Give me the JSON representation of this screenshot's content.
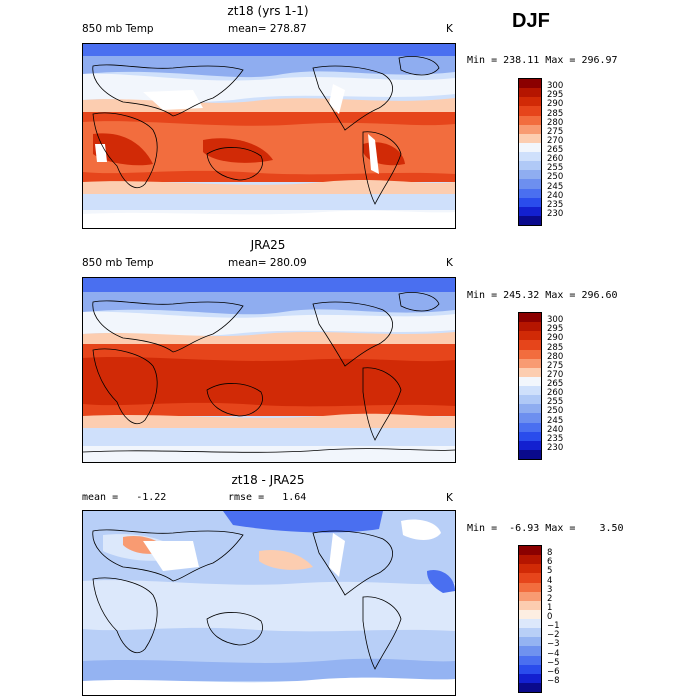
{
  "season": "DJF",
  "colors": {
    "warm_band": "#ea4a1f",
    "hot": "#c92a0a",
    "cool": "#9cbaf2",
    "cold": "#3a6df0",
    "missing": "#ffffff",
    "coast": "#000000"
  },
  "chart_data": [
    {
      "type": "heatmap",
      "title": "zt18 (yrs 1-1)",
      "variable": "850 mb Temp",
      "mean_label": "mean=",
      "mean": "278.87",
      "units": "K",
      "min_label": "Min =",
      "min": "238.11",
      "max_label": "Max =",
      "max": "296.97",
      "colorbar": {
        "levels": [
          "300",
          "295",
          "290",
          "285",
          "280",
          "275",
          "270",
          "265",
          "260",
          "255",
          "250",
          "245",
          "240",
          "235",
          "230"
        ],
        "colors": [
          "#8b0000",
          "#b51500",
          "#d12a06",
          "#e6451b",
          "#f26d3e",
          "#f89b72",
          "#fccdb0",
          "#f2f6fc",
          "#cfe0fb",
          "#b0c9f6",
          "#8fadf0",
          "#6d8fef",
          "#4a6ff0",
          "#2a4cec",
          "#1320d0",
          "#0a0a8c"
        ]
      }
    },
    {
      "type": "heatmap",
      "title": "JRA25",
      "variable": "850 mb Temp",
      "mean_label": "mean=",
      "mean": "280.09",
      "units": "K",
      "min_label": "Min =",
      "min": "245.32",
      "max_label": "Max =",
      "max": "296.60",
      "colorbar": {
        "levels": [
          "300",
          "295",
          "290",
          "285",
          "280",
          "275",
          "270",
          "265",
          "260",
          "255",
          "250",
          "245",
          "240",
          "235",
          "230"
        ],
        "colors": [
          "#8b0000",
          "#b51500",
          "#d12a06",
          "#e6451b",
          "#f26d3e",
          "#f89b72",
          "#fccdb0",
          "#f2f6fc",
          "#cfe0fb",
          "#b0c9f6",
          "#8fadf0",
          "#6d8fef",
          "#4a6ff0",
          "#2a4cec",
          "#1320d0",
          "#0a0a8c"
        ]
      }
    },
    {
      "type": "heatmap",
      "title": "zt18 - JRA25",
      "mean_label": "mean =",
      "mean": "-1.22",
      "rmse_label": "rmse =",
      "rmse": "1.64",
      "units": "K",
      "min_label": "Min =",
      "min": "-6.93",
      "max_label": "Max =",
      "max": "3.50",
      "colorbar": {
        "levels": [
          "8",
          "6",
          "5",
          "4",
          "3",
          "2",
          "1",
          "0",
          "−1",
          "−2",
          "−3",
          "−4",
          "−5",
          "−6",
          "−8"
        ],
        "colors": [
          "#8b0000",
          "#b51500",
          "#d12a06",
          "#e6451b",
          "#f26d3e",
          "#f89b72",
          "#fccdb0",
          "#fdeee2",
          "#dce8fb",
          "#b8cff7",
          "#94b3f2",
          "#6f92ef",
          "#4a6ff0",
          "#2a4cec",
          "#1320d0",
          "#0a0a8c"
        ]
      }
    }
  ]
}
